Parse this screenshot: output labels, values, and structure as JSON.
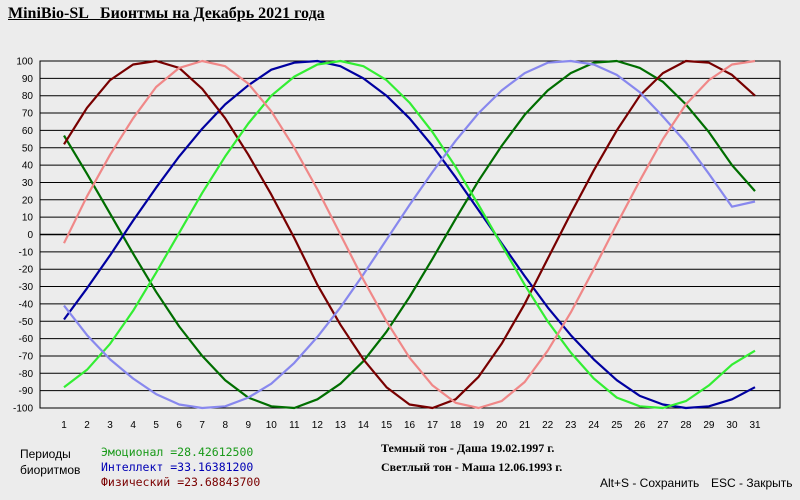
{
  "window": {
    "title_brand": "MiniBio-SL",
    "title_text": "Бионтмы на Декабрь 2021 года"
  },
  "legend": {
    "label_line1": "Периоды",
    "label_line2": "биоритмов",
    "periods": [
      {
        "name": "Эмоционал",
        "value": "=28.42612500",
        "color": "#1a9a1a"
      },
      {
        "name": "Интеллект",
        "value": "=33.16381200",
        "color": "#0000b4"
      },
      {
        "name": "Физический",
        "value": "=23.68843700",
        "color": "#7a0000"
      }
    ]
  },
  "people": {
    "dark": "Темный тон - Даша 19.02.1997 г.",
    "light": "Светлый тон - Маша 12.06.1993 г."
  },
  "hints": {
    "save": "Alt+S - Сохранить",
    "close": "ESC - Закрыть"
  },
  "chart_data": {
    "type": "line",
    "title": "Бионтмы на Декабрь 2021 года",
    "x": [
      1,
      2,
      3,
      4,
      5,
      6,
      7,
      8,
      9,
      10,
      11,
      12,
      13,
      14,
      15,
      16,
      17,
      18,
      19,
      20,
      21,
      22,
      23,
      24,
      25,
      26,
      27,
      28,
      29,
      30,
      31
    ],
    "xlim": [
      1,
      31
    ],
    "ylim": [
      -100,
      100
    ],
    "yticks": [
      100,
      90,
      80,
      70,
      60,
      50,
      40,
      30,
      20,
      10,
      0,
      -10,
      -20,
      -30,
      -40,
      -50,
      -60,
      -70,
      -80,
      -90,
      -100
    ],
    "grid": true,
    "series": [
      {
        "values": [
          57,
          35,
          12,
          -11,
          -33,
          -53,
          -70,
          -84,
          -94,
          -99,
          -100,
          -95,
          -86,
          -73,
          -56,
          -36,
          -14,
          9,
          31,
          51,
          69,
          83,
          93,
          99,
          100,
          96,
          88,
          75,
          59,
          40,
          25
        ],
        "color": "#006e00"
      },
      {
        "values": [
          -49,
          -31,
          -12,
          8,
          27,
          45,
          61,
          75,
          86,
          95,
          99,
          100,
          97,
          90,
          80,
          67,
          51,
          33,
          14,
          -5,
          -24,
          -42,
          -58,
          -72,
          -84,
          -93,
          -98,
          -100,
          -99,
          -95,
          -88
        ],
        "color": "#0000a0"
      },
      {
        "values": [
          52,
          73,
          89,
          98,
          100,
          96,
          84,
          67,
          46,
          23,
          -2,
          -29,
          -52,
          -72,
          -88,
          -98,
          -100,
          -95,
          -82,
          -63,
          -40,
          -14,
          12,
          37,
          60,
          80,
          93,
          100,
          99,
          92,
          80
        ],
        "color": "#780000"
      },
      {
        "values": [
          -88,
          -78,
          -63,
          -44,
          -22,
          1,
          24,
          45,
          64,
          80,
          91,
          98,
          100,
          97,
          89,
          76,
          59,
          39,
          17,
          -6,
          -29,
          -50,
          -68,
          -83,
          -94,
          -99,
          -100,
          -96,
          -87,
          -75,
          -67
        ],
        "color": "#33ee33"
      },
      {
        "values": [
          -41,
          -58,
          -72,
          -83,
          -92,
          -98,
          -100,
          -99,
          -94,
          -86,
          -74,
          -59,
          -42,
          -23,
          -3,
          17,
          36,
          54,
          70,
          83,
          93,
          99,
          100,
          98,
          92,
          82,
          68,
          53,
          35,
          16,
          19
        ],
        "color": "#8888ee"
      },
      {
        "values": [
          -5,
          22,
          46,
          67,
          85,
          96,
          100,
          97,
          87,
          71,
          50,
          26,
          0,
          -26,
          -50,
          -71,
          -87,
          -97,
          -100,
          -96,
          -85,
          -67,
          -45,
          -20,
          6,
          31,
          55,
          75,
          89,
          98,
          100
        ],
        "color": "#f08888"
      }
    ]
  }
}
